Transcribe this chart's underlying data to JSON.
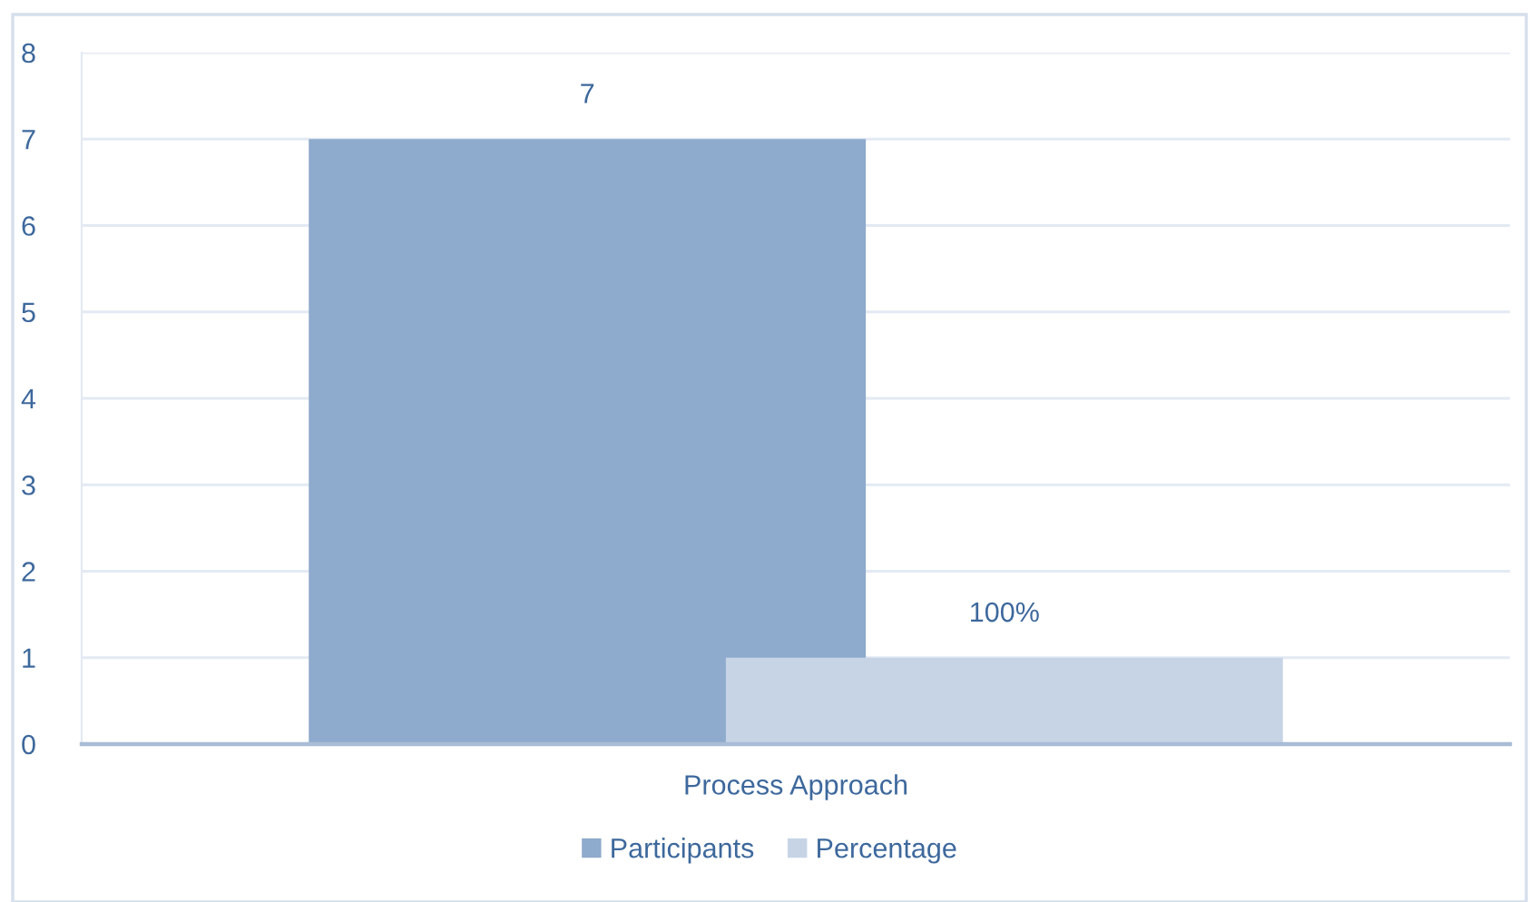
{
  "chart_data": {
    "type": "bar",
    "categories": [
      "Process Approach"
    ],
    "series": [
      {
        "name": "Participants",
        "color": "#8eaacc",
        "values": [
          7
        ],
        "value_labels": [
          "7"
        ]
      },
      {
        "name": "Percentage",
        "color": "#c6d4e6",
        "values": [
          1
        ],
        "value_labels": [
          "100%"
        ]
      }
    ],
    "ylim": [
      0,
      8
    ],
    "yticks": [
      0,
      1,
      2,
      3,
      4,
      5,
      6,
      7,
      8
    ],
    "grid": "y",
    "legend": "bottom"
  }
}
